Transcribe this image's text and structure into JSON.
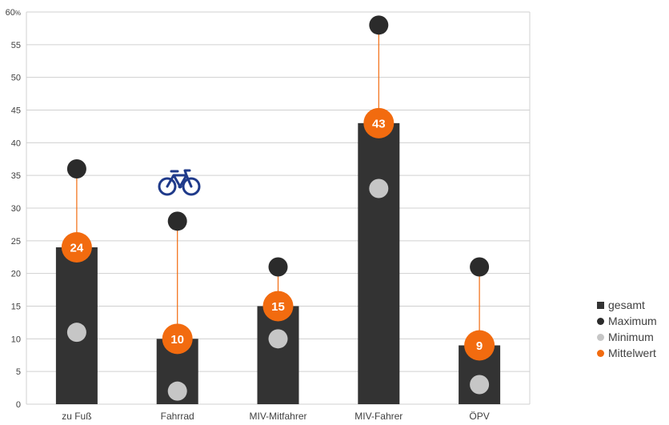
{
  "chart_data": {
    "type": "bar",
    "categories": [
      "zu Fuß",
      "Fahrrad",
      "MIV-Mitfahrer",
      "MIV-Fahrer",
      "ÖPV"
    ],
    "series": [
      {
        "name": "gesamt",
        "values": [
          24,
          10,
          15,
          43,
          9
        ]
      },
      {
        "name": "Maximum",
        "values": [
          36,
          28,
          21,
          58,
          21
        ]
      },
      {
        "name": "Minimum",
        "values": [
          11,
          2,
          10,
          33,
          3
        ]
      },
      {
        "name": "Mittelwert",
        "values": [
          24,
          10,
          15,
          43,
          9
        ]
      }
    ],
    "y_ticks": [
      0,
      5,
      10,
      15,
      20,
      25,
      30,
      35,
      40,
      45,
      50,
      55,
      60
    ],
    "y_unit": "%",
    "ylim": [
      0,
      60
    ],
    "grid": true,
    "legend_position": "right",
    "colors": {
      "gesamt": "#333333",
      "Maximum": "#2b2b2b",
      "Minimum": "#c6c6c6",
      "Mittelwert": "#f26b0f",
      "bicycle": "#1f3a8a"
    },
    "icons": [
      "bicycle-icon"
    ]
  }
}
